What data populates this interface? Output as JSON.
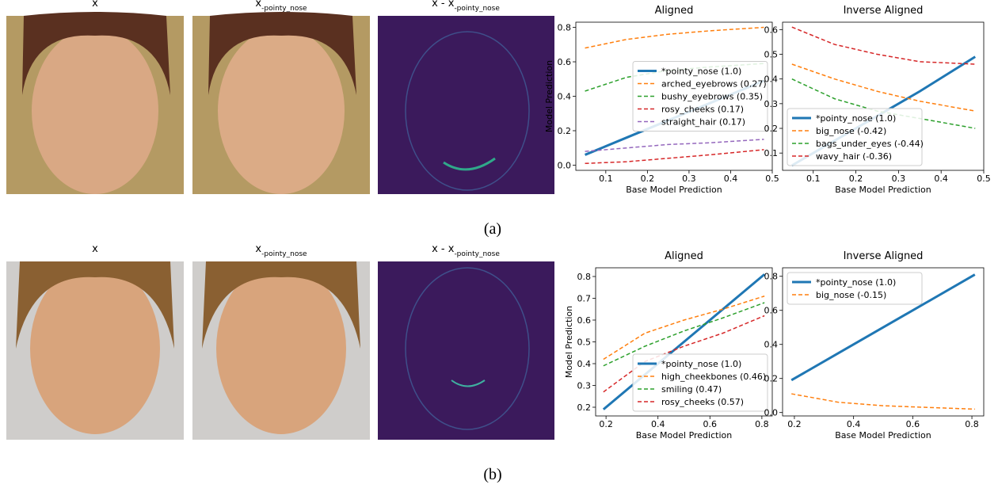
{
  "panels": [
    {
      "caption": "(a)",
      "images": [
        {
          "base": "x"
        },
        {
          "base": "x",
          "sub": "-pointy_nose"
        },
        {
          "base": "x - x",
          "sub": "-pointy_nose"
        }
      ]
    },
    {
      "caption": "(b)",
      "images": [
        {
          "base": "x"
        },
        {
          "base": "x",
          "sub": "-pointy_nose"
        },
        {
          "base": "x - x",
          "sub": "-pointy_nose"
        }
      ]
    }
  ],
  "chart_data": [
    {
      "type": "line",
      "title": "Aligned",
      "x_label": "Base Model Prediction",
      "y_label": "Model Prediction",
      "x": [
        0.05,
        0.15,
        0.25,
        0.35,
        0.48
      ],
      "xlim": [
        0.028,
        0.5
      ],
      "xticks": [
        0.1,
        0.2,
        0.3,
        0.4,
        0.5
      ],
      "ylim": [
        -0.03,
        0.83
      ],
      "yticks": [
        {
          "value": 0,
          "label": "0.0"
        },
        0.2,
        0.4,
        0.6,
        0.8
      ],
      "legend": "center right",
      "series": [
        {
          "name": "*pointy_nose (1.0)",
          "color": "#1f77b4",
          "style": "solid",
          "values": [
            0.06,
            0.16,
            0.26,
            0.36,
            0.49
          ]
        },
        {
          "name": "arched_eyebrows (0.27)",
          "color": "#ff7f0e",
          "style": "dashed",
          "values": [
            0.68,
            0.73,
            0.76,
            0.78,
            0.8
          ]
        },
        {
          "name": "bushy_eyebrows (0.35)",
          "color": "#2ca02c",
          "style": "dashed",
          "values": [
            0.43,
            0.51,
            0.55,
            0.57,
            0.59
          ]
        },
        {
          "name": "rosy_cheeks (0.17)",
          "color": "#d62728",
          "style": "dashed",
          "values": [
            0.01,
            0.02,
            0.04,
            0.06,
            0.09
          ]
        },
        {
          "name": "straight_hair (0.17)",
          "color": "#9467bd",
          "style": "dashed",
          "values": [
            0.08,
            0.1,
            0.12,
            0.13,
            0.15
          ]
        }
      ]
    },
    {
      "type": "line",
      "title": "Inverse Aligned",
      "x_label": "Base Model Prediction",
      "x": [
        0.05,
        0.15,
        0.25,
        0.35,
        0.48
      ],
      "xlim": [
        0.028,
        0.5
      ],
      "xticks": [
        0.1,
        0.2,
        0.3,
        0.4,
        0.5
      ],
      "ylim": [
        0.03,
        0.63
      ],
      "yticks": [
        0.1,
        0.2,
        0.3,
        0.4,
        0.5,
        0.6
      ],
      "legend": "lower left",
      "series": [
        {
          "name": "*pointy_nose (1.0)",
          "color": "#1f77b4",
          "style": "solid",
          "values": [
            0.05,
            0.15,
            0.25,
            0.35,
            0.49
          ]
        },
        {
          "name": "big_nose (-0.42)",
          "color": "#ff7f0e",
          "style": "dashed",
          "values": [
            0.46,
            0.4,
            0.35,
            0.31,
            0.27
          ]
        },
        {
          "name": "bags_under_eyes (-0.44)",
          "color": "#2ca02c",
          "style": "dashed",
          "values": [
            0.4,
            0.32,
            0.27,
            0.24,
            0.2
          ]
        },
        {
          "name": "wavy_hair (-0.36)",
          "color": "#d62728",
          "style": "dashed",
          "values": [
            0.61,
            0.54,
            0.5,
            0.47,
            0.46
          ]
        }
      ]
    },
    {
      "type": "line",
      "title": "Aligned",
      "x_label": "Base Model Prediction",
      "y_label": "Model Prediction",
      "x": [
        0.19,
        0.35,
        0.5,
        0.65,
        0.81
      ],
      "xlim": [
        0.16,
        0.84
      ],
      "xticks": [
        0.2,
        0.4,
        0.6,
        0.8
      ],
      "ylim": [
        0.16,
        0.84
      ],
      "yticks": [
        0.2,
        0.3,
        0.4,
        0.5,
        0.6,
        0.7,
        0.8
      ],
      "legend": "lower right",
      "series": [
        {
          "name": "*pointy_nose (1.0)",
          "color": "#1f77b4",
          "style": "solid",
          "values": [
            0.19,
            0.35,
            0.5,
            0.65,
            0.81
          ]
        },
        {
          "name": "high_cheekbones (0.46)",
          "color": "#ff7f0e",
          "style": "dashed",
          "values": [
            0.42,
            0.54,
            0.6,
            0.65,
            0.71
          ]
        },
        {
          "name": "smiling (0.47)",
          "color": "#2ca02c",
          "style": "dashed",
          "values": [
            0.39,
            0.48,
            0.55,
            0.61,
            0.68
          ]
        },
        {
          "name": "rosy_cheeks (0.57)",
          "color": "#d62728",
          "style": "dashed",
          "values": [
            0.27,
            0.41,
            0.48,
            0.54,
            0.62
          ]
        }
      ]
    },
    {
      "type": "line",
      "title": "Inverse Aligned",
      "x_label": "Base Model Prediction",
      "x": [
        0.19,
        0.35,
        0.5,
        0.65,
        0.81
      ],
      "xlim": [
        0.16,
        0.84
      ],
      "xticks": [
        0.2,
        0.4,
        0.6,
        0.8
      ],
      "ylim": [
        -0.02,
        0.85
      ],
      "yticks": [
        {
          "value": 0,
          "label": "0.0"
        },
        0.2,
        0.4,
        0.6,
        0.8
      ],
      "legend": "upper left",
      "series": [
        {
          "name": "*pointy_nose (1.0)",
          "color": "#1f77b4",
          "style": "solid",
          "values": [
            0.19,
            0.35,
            0.5,
            0.65,
            0.81
          ]
        },
        {
          "name": "big_nose (-0.15)",
          "color": "#ff7f0e",
          "style": "dashed",
          "values": [
            0.11,
            0.06,
            0.04,
            0.03,
            0.02
          ]
        }
      ]
    }
  ]
}
